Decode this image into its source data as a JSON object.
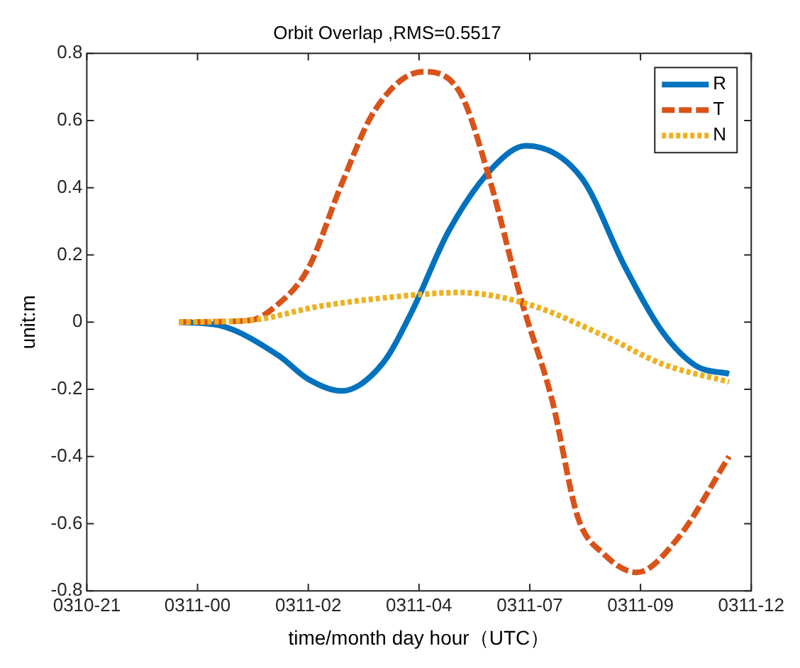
{
  "chart_data": {
    "type": "line",
    "title": "Orbit Overlap ,RMS=0.5517",
    "xlabel": "time/month day hour（UTC）",
    "ylabel": "unit:m",
    "xlim": [
      "--03-10T21:00",
      "--03-11T12:00"
    ],
    "xticks": [
      {
        "value": "--03-10T21:00",
        "label": "0310-21"
      },
      {
        "value": "--03-10T23:30",
        "label": "0311-00"
      },
      {
        "value": "--03-11T02:00",
        "label": "0311-02"
      },
      {
        "value": "--03-11T04:30",
        "label": "0311-04"
      },
      {
        "value": "--03-11T07:00",
        "label": "0311-07"
      },
      {
        "value": "--03-11T09:30",
        "label": "0311-09"
      },
      {
        "value": "--03-11T12:00",
        "label": "0311-12"
      }
    ],
    "ylim": [
      -0.8,
      0.8
    ],
    "yticks": [
      -0.8,
      -0.6,
      -0.4,
      -0.2,
      0,
      0.2,
      0.4,
      0.6,
      0.8
    ],
    "grid": false,
    "legend": "top right",
    "marker": "none",
    "series": [
      {
        "name": "R",
        "color": "#0072bd",
        "line_style": "solid",
        "x": [
          "--03-10T23:05",
          "--03-11T00:00",
          "--03-11T01:20",
          "--03-11T02:00",
          "--03-11T02:45",
          "--03-11T03:40",
          "--03-11T04:20",
          "--03-11T05:10",
          "--03-11T06:10",
          "--03-11T06:55",
          "--03-11T08:10",
          "--03-11T09:10",
          "--03-11T10:00",
          "--03-11T10:45",
          "--03-11T11:30"
        ],
        "values": [
          0,
          -0.01,
          -0.1,
          -0.17,
          -0.205,
          -0.125,
          0.03,
          0.27,
          0.46,
          0.525,
          0.43,
          0.16,
          -0.03,
          -0.13,
          -0.154
        ]
      },
      {
        "name": "T",
        "color": "#d95319",
        "line_style": "dashed",
        "x": [
          "--03-10T23:05",
          "--03-11T00:40",
          "--03-11T01:20",
          "--03-11T02:00",
          "--03-11T02:45",
          "--03-11T03:30",
          "--03-11T04:35",
          "--03-11T05:25",
          "--03-11T06:05",
          "--03-11T06:50",
          "--03-11T07:30",
          "--03-11T08:05",
          "--03-11T08:40",
          "--03-11T09:25",
          "--03-11T10:20",
          "--03-11T11:30"
        ],
        "values": [
          0,
          0.005,
          0.055,
          0.16,
          0.41,
          0.63,
          0.745,
          0.685,
          0.43,
          0.055,
          -0.23,
          -0.58,
          -0.69,
          -0.745,
          -0.645,
          -0.4
        ]
      },
      {
        "name": "N",
        "color": "#edb120",
        "line_style": "dotted",
        "x": [
          "--03-10T23:05",
          "--03-11T00:40",
          "--03-11T02:15",
          "--03-11T04:20",
          "--03-11T05:25",
          "--03-11T06:55",
          "--03-11T08:40",
          "--03-11T10:00",
          "--03-11T11:30"
        ],
        "values": [
          0,
          0.005,
          0.047,
          0.08,
          0.088,
          0.055,
          -0.04,
          -0.125,
          -0.178
        ]
      }
    ]
  }
}
